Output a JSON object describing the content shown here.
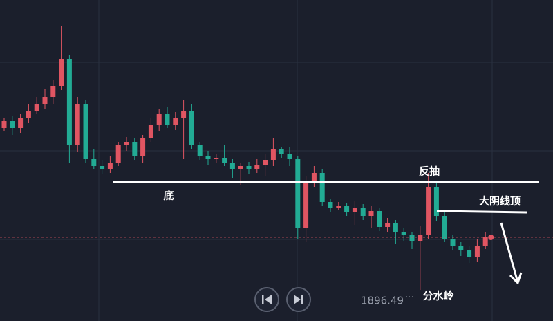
{
  "chart_data": {
    "type": "candlestick",
    "ylim": [
      1892,
      1938.4
    ],
    "up_color": "#e05562",
    "down_color": "#22ab94",
    "open": [
      1919.9,
      1920.9,
      1919.9,
      1921.4,
      1922.4,
      1923.4,
      1924.4,
      1925.9,
      1929.9,
      1917.4,
      1923.4,
      1915.4,
      1914.4,
      1913.9,
      1914.9,
      1917.4,
      1917.9,
      1915.9,
      1918.4,
      1920.4,
      1921.9,
      1920.4,
      1921.4,
      1922.4,
      1917.4,
      1915.9,
      1915.4,
      1915.6,
      1914.8,
      1913.9,
      1914.4,
      1913.9,
      1914.6,
      1915.2,
      1916.9,
      1916.2,
      1915.4,
      1905.4,
      1912.2,
      1913.4,
      1909.2,
      1908.4,
      1908.6,
      1907.8,
      1908.4,
      1907.2,
      1907.9,
      1905.6,
      1906.2,
      1904.8,
      1904.4,
      1903.6,
      1904.4,
      1911.4,
      1907.2,
      1903.9,
      1902.9,
      1902.2,
      1901.2,
      1902.9
    ],
    "high": [
      1921.4,
      1921.6,
      1921.9,
      1923.4,
      1924.4,
      1925.6,
      1926.9,
      1934.6,
      1930.4,
      1924.4,
      1923.9,
      1916.9,
      1915.2,
      1915.9,
      1917.9,
      1918.6,
      1918.4,
      1918.9,
      1921.4,
      1922.6,
      1922.9,
      1922.2,
      1923.9,
      1923.4,
      1917.9,
      1916.6,
      1916.2,
      1917.4,
      1915.4,
      1914.9,
      1915.0,
      1915.4,
      1916.2,
      1918.4,
      1917.2,
      1917.2,
      1915.9,
      1912.9,
      1914.4,
      1913.9,
      1909.6,
      1909.2,
      1909.0,
      1909.4,
      1908.9,
      1908.6,
      1908.4,
      1906.9,
      1906.6,
      1905.4,
      1904.9,
      1905.8,
      1913.4,
      1911.9,
      1907.9,
      1904.4,
      1903.4,
      1902.9,
      1903.9,
      1904.9
    ],
    "low": [
      1919.4,
      1918.9,
      1919.2,
      1920.6,
      1921.9,
      1922.6,
      1923.4,
      1925.4,
      1914.9,
      1916.4,
      1914.9,
      1913.9,
      1913.2,
      1913.4,
      1914.4,
      1916.6,
      1915.2,
      1914.9,
      1917.9,
      1919.4,
      1919.9,
      1919.6,
      1915.4,
      1916.9,
      1915.2,
      1914.6,
      1914.8,
      1914.4,
      1912.6,
      1911.6,
      1913.2,
      1913.4,
      1912.9,
      1914.4,
      1915.6,
      1914.4,
      1903.9,
      1903.4,
      1911.4,
      1908.6,
      1907.8,
      1908.0,
      1907.2,
      1905.9,
      1906.6,
      1905.4,
      1905.0,
      1904.9,
      1903.2,
      1903.6,
      1902.4,
      1896.49,
      1903.9,
      1906.4,
      1903.4,
      1902.2,
      1901.4,
      1900.4,
      1900.6,
      1902.4
    ],
    "close": [
      1920.9,
      1919.9,
      1921.4,
      1922.4,
      1923.4,
      1924.4,
      1925.9,
      1929.9,
      1917.4,
      1923.4,
      1915.4,
      1914.4,
      1913.9,
      1914.9,
      1917.4,
      1917.9,
      1915.9,
      1918.4,
      1920.4,
      1921.9,
      1920.4,
      1921.4,
      1922.4,
      1917.4,
      1915.9,
      1915.4,
      1915.6,
      1914.8,
      1913.9,
      1914.4,
      1913.9,
      1914.6,
      1915.2,
      1916.9,
      1916.2,
      1915.4,
      1905.4,
      1912.2,
      1913.4,
      1909.2,
      1908.4,
      1908.6,
      1907.8,
      1908.4,
      1907.2,
      1907.9,
      1905.6,
      1906.2,
      1904.8,
      1904.4,
      1903.6,
      1904.4,
      1911.4,
      1907.2,
      1903.9,
      1902.9,
      1902.2,
      1901.2,
      1902.9,
      1904.1
    ],
    "low_price": 1896.49,
    "annotations": [
      "底",
      "反抽",
      "大阴线顶",
      "分水岭"
    ]
  }
}
